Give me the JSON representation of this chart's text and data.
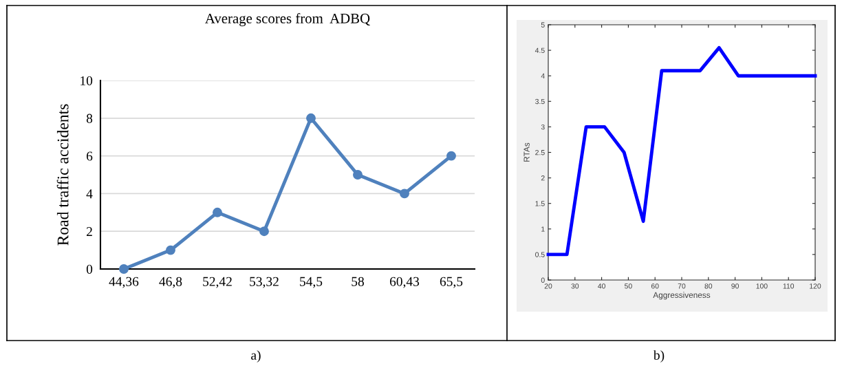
{
  "chart_data": [
    {
      "type": "line",
      "title": "Average scores from  ADBQ",
      "ylabel": "Road traffic accidents",
      "categories": [
        "44,36",
        "46,8",
        "52,42",
        "53,32",
        "54,5",
        "58",
        "60,43",
        "65,5"
      ],
      "series": [
        {
          "color": "#4f81bd",
          "values": [
            0,
            1,
            3,
            2,
            8,
            5,
            4,
            6
          ]
        }
      ],
      "ylim": [
        0,
        10
      ],
      "yticks": [
        0,
        2,
        4,
        6,
        8,
        10
      ],
      "grid": "y",
      "marker": "circle",
      "line_style": "solid",
      "annotations": [
        "a)"
      ]
    },
    {
      "type": "line",
      "xlabel": "Aggressiveness",
      "ylabel": "RTAs",
      "x": [
        20,
        27,
        34.2,
        41.1,
        48.4,
        55.6,
        62.5,
        76.9,
        84,
        91.2,
        120
      ],
      "series": [
        {
          "color": "#0000ff",
          "values": [
            0.5,
            0.5,
            3,
            3,
            2.5,
            1.15,
            4.1,
            4.1,
            4.55,
            4,
            4
          ]
        }
      ],
      "xlim": [
        20,
        120
      ],
      "xticks": [
        20,
        30,
        40,
        50,
        60,
        70,
        80,
        90,
        100,
        110,
        120
      ],
      "ylim": [
        0,
        5
      ],
      "yticks": [
        0,
        0.5,
        1,
        1.5,
        2,
        2.5,
        3,
        3.5,
        4,
        4.5,
        5
      ],
      "grid": false,
      "line_style": "solid",
      "annotations": [
        "b)"
      ]
    }
  ]
}
